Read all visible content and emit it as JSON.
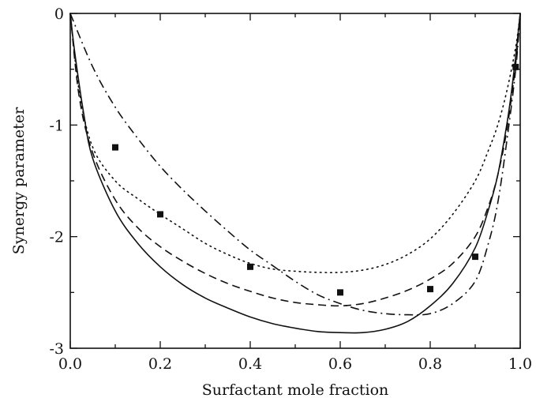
{
  "chart_data": {
    "type": "line",
    "title": "",
    "xlabel": "Surfactant mole fraction",
    "ylabel": "Synergy parameter",
    "xlim": [
      0.0,
      1.0
    ],
    "ylim": [
      -3,
      0
    ],
    "grid": false,
    "legend": "none",
    "x_ticks": [
      {
        "value": 0.0,
        "label": "0.0"
      },
      {
        "value": 0.2,
        "label": "0.2"
      },
      {
        "value": 0.4,
        "label": "0.4"
      },
      {
        "value": 0.6,
        "label": "0.6"
      },
      {
        "value": 0.8,
        "label": "0.8"
      },
      {
        "value": 1.0,
        "label": "1.0"
      }
    ],
    "y_ticks": [
      {
        "value": 0,
        "label": "0"
      },
      {
        "value": -1,
        "label": "-1"
      },
      {
        "value": -2,
        "label": "-2"
      },
      {
        "value": -3,
        "label": "-3"
      }
    ],
    "series": [
      {
        "style": "solid",
        "x": [
          0.0,
          0.01,
          0.03,
          0.05,
          0.1,
          0.15,
          0.2,
          0.25,
          0.3,
          0.35,
          0.4,
          0.45,
          0.5,
          0.55,
          0.6,
          0.65,
          0.7,
          0.75,
          0.8,
          0.85,
          0.9,
          0.93,
          0.95,
          0.97,
          0.98,
          0.99,
          1.0
        ],
        "y": [
          0.0,
          -0.35,
          -0.9,
          -1.3,
          -1.77,
          -2.06,
          -2.27,
          -2.43,
          -2.55,
          -2.64,
          -2.72,
          -2.78,
          -2.82,
          -2.85,
          -2.86,
          -2.86,
          -2.83,
          -2.76,
          -2.62,
          -2.42,
          -2.1,
          -1.75,
          -1.45,
          -1.0,
          -0.72,
          -0.38,
          0.0
        ]
      },
      {
        "style": "dashed",
        "x": [
          0.0,
          0.02,
          0.05,
          0.1,
          0.15,
          0.2,
          0.25,
          0.3,
          0.35,
          0.4,
          0.45,
          0.5,
          0.55,
          0.6,
          0.65,
          0.7,
          0.75,
          0.8,
          0.85,
          0.9,
          0.93,
          0.95,
          0.97,
          0.99,
          1.0
        ],
        "y": [
          0.0,
          -0.75,
          -1.25,
          -1.67,
          -1.92,
          -2.09,
          -2.22,
          -2.33,
          -2.42,
          -2.49,
          -2.55,
          -2.59,
          -2.61,
          -2.62,
          -2.6,
          -2.55,
          -2.48,
          -2.38,
          -2.24,
          -2.0,
          -1.72,
          -1.45,
          -1.05,
          -0.45,
          0.0
        ]
      },
      {
        "style": "dotted",
        "x": [
          0.0,
          0.02,
          0.05,
          0.1,
          0.15,
          0.2,
          0.25,
          0.3,
          0.35,
          0.4,
          0.45,
          0.5,
          0.55,
          0.6,
          0.65,
          0.7,
          0.75,
          0.8,
          0.85,
          0.9,
          0.93,
          0.95,
          0.97,
          0.99,
          1.0
        ],
        "y": [
          0.0,
          -0.7,
          -1.2,
          -1.5,
          -1.66,
          -1.8,
          -1.93,
          -2.06,
          -2.16,
          -2.24,
          -2.29,
          -2.31,
          -2.32,
          -2.32,
          -2.3,
          -2.25,
          -2.16,
          -2.02,
          -1.8,
          -1.5,
          -1.22,
          -1.0,
          -0.7,
          -0.3,
          0.0
        ]
      },
      {
        "style": "dash-dot",
        "x": [
          0.0,
          0.05,
          0.1,
          0.15,
          0.2,
          0.25,
          0.3,
          0.35,
          0.4,
          0.45,
          0.5,
          0.55,
          0.6,
          0.65,
          0.7,
          0.75,
          0.8,
          0.85,
          0.9,
          0.93,
          0.95,
          0.97,
          0.99,
          1.0
        ],
        "y": [
          0.0,
          -0.48,
          -0.84,
          -1.12,
          -1.37,
          -1.58,
          -1.77,
          -1.95,
          -2.12,
          -2.26,
          -2.4,
          -2.52,
          -2.6,
          -2.66,
          -2.69,
          -2.7,
          -2.69,
          -2.6,
          -2.4,
          -2.05,
          -1.7,
          -1.15,
          -0.5,
          0.0
        ]
      }
    ],
    "points": {
      "marker": "square",
      "x": [
        0.1,
        0.2,
        0.4,
        0.6,
        0.8,
        0.9,
        0.99
      ],
      "y": [
        -1.2,
        -1.8,
        -2.27,
        -2.5,
        -2.47,
        -2.18,
        -0.48
      ]
    }
  }
}
